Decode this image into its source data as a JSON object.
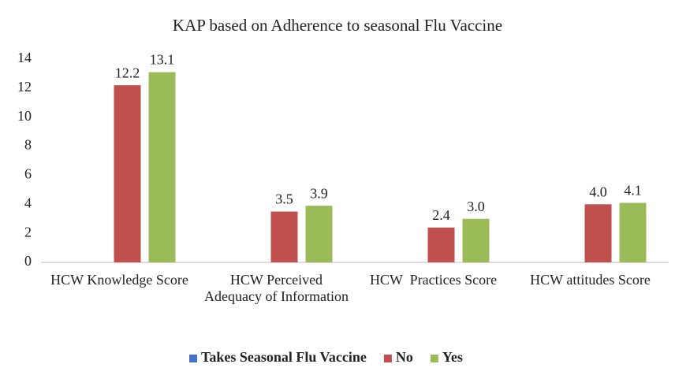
{
  "chart_data": {
    "type": "bar",
    "title": "KAP based on Adherence to seasonal Flu Vaccine",
    "categories": [
      "HCW Knowledge Score",
      "HCW Perceived Adequacy of Information",
      "HCW  Practices Score",
      "HCW attitudes Score"
    ],
    "series": [
      {
        "name": "Takes Seasonal Flu Vaccine",
        "color": "#4472c4",
        "values": [
          null,
          null,
          null,
          null
        ]
      },
      {
        "name": "No",
        "color": "#c0504d",
        "values": [
          12.2,
          3.5,
          2.4,
          4.0
        ],
        "value_labels": [
          "12.2",
          "3.5",
          "2.4",
          "4.0"
        ]
      },
      {
        "name": "Yes",
        "color": "#9bbb59",
        "values": [
          13.1,
          3.9,
          3.0,
          4.1
        ],
        "value_labels": [
          "13.1",
          "3.9",
          "3.0",
          "4.1"
        ]
      }
    ],
    "ylim": [
      0,
      14
    ],
    "yticks": [
      0,
      2,
      4,
      6,
      8,
      10,
      12,
      14
    ],
    "grid": false,
    "legend": "bottom"
  }
}
